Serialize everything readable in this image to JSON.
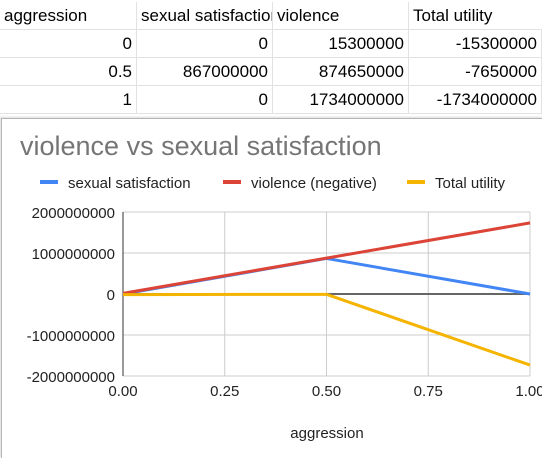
{
  "sheet": {
    "headers": [
      "aggression",
      "sexual satisfaction",
      "violence",
      "Total utility"
    ],
    "rows": [
      [
        "0",
        "0",
        "15300000",
        "-15300000"
      ],
      [
        "0.5",
        "867000000",
        "874650000",
        "-7650000"
      ],
      [
        "1",
        "0",
        "1734000000",
        "-1734000000"
      ]
    ]
  },
  "chart": {
    "title": "violence vs sexual satisfaction",
    "xlabel": "aggression"
  },
  "chart_data": {
    "type": "line",
    "title": "violence vs sexual satisfaction",
    "xlabel": "aggression",
    "ylabel": "",
    "x": [
      0,
      0.5,
      1
    ],
    "xlim": [
      0,
      1
    ],
    "ylim": [
      -2000000000,
      2000000000
    ],
    "x_ticks": [
      "0.00",
      "0.25",
      "0.50",
      "0.75",
      "1.00"
    ],
    "y_ticks": [
      "2000000000",
      "1000000000",
      "0",
      "-1000000000",
      "-2000000000"
    ],
    "grid": true,
    "legend_position": "top",
    "series": [
      {
        "name": "sexual satisfaction",
        "color": "#4285f4",
        "values": [
          0,
          867000000,
          0
        ]
      },
      {
        "name": "violence (negative)",
        "color": "#db4437",
        "values": [
          15300000,
          874650000,
          1734000000
        ]
      },
      {
        "name": "Total utility",
        "color": "#f4b400",
        "values": [
          -15300000,
          -7650000,
          -1734000000
        ]
      }
    ]
  }
}
